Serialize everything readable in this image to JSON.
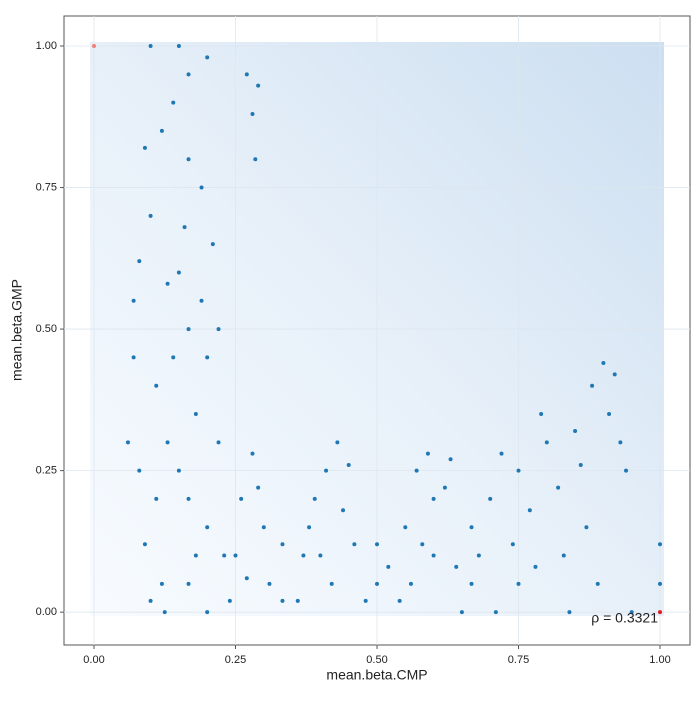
{
  "chart_data": {
    "type": "scatter",
    "x_label": "mean.beta.CMP",
    "y_label": "mean.beta.GMP",
    "annotation": "ρ = 0.3321",
    "xlim": [
      -0.053,
      1.053
    ],
    "ylim": [
      -0.058,
      1.053
    ],
    "xticks": [
      {
        "value": 0,
        "label": "0.00"
      },
      {
        "value": 0.25,
        "label": "0.25"
      },
      {
        "value": 0.5,
        "label": "0.50"
      },
      {
        "value": 0.75,
        "label": "0.75"
      },
      {
        "value": 1,
        "label": "1.00"
      }
    ],
    "yticks": [
      {
        "value": 0,
        "label": "0.00"
      },
      {
        "value": 0.25,
        "label": "0.25"
      },
      {
        "value": 0.5,
        "label": "0.50"
      },
      {
        "value": 0.75,
        "label": "0.75"
      },
      {
        "value": 1,
        "label": "1.00"
      }
    ],
    "grid": true,
    "series": [
      {
        "color": "#1f78b4",
        "x": [
          0.07,
          0.08,
          0.09,
          0.1,
          0.11,
          0.12,
          0.13,
          0.14,
          0.15,
          0.167,
          0.167,
          0.167,
          0.167,
          0.167,
          0.18,
          0.19,
          0.2,
          0.2,
          0.2,
          0.21,
          0.22,
          0.23,
          0.12,
          0.1,
          0.08,
          0.06,
          0.14,
          0.16,
          0.18,
          0.22,
          0.09,
          0.11,
          0.13,
          0.15,
          0.19,
          0.125,
          0.2,
          0.1,
          0.15,
          0.07,
          0.27,
          0.28,
          0.285,
          0.29,
          0.25,
          0.26,
          0.28,
          0.3,
          0.31,
          0.333,
          0.333,
          0.27,
          0.29,
          0.24,
          0.37,
          0.39,
          0.41,
          0.43,
          0.44,
          0.42,
          0.38,
          0.46,
          0.36,
          0.4,
          0.45,
          0.5,
          0.5,
          0.48,
          0.52,
          0.55,
          0.57,
          0.59,
          0.6,
          0.62,
          0.63,
          0.56,
          0.6,
          0.64,
          0.54,
          0.58,
          0.667,
          0.667,
          0.65,
          0.68,
          0.7,
          0.72,
          0.74,
          0.75,
          0.75,
          0.77,
          0.79,
          0.8,
          0.78,
          0.71,
          0.82,
          0.83,
          0.85,
          0.86,
          0.88,
          0.9,
          0.91,
          0.92,
          0.93,
          0.94,
          0.87,
          0.89,
          0.84,
          0.95,
          1,
          1
        ],
        "values": [
          0.55,
          0.25,
          0.12,
          0.7,
          0.4,
          0.05,
          0.3,
          0.9,
          0.6,
          0.95,
          0.8,
          0.5,
          0.2,
          0.05,
          0.35,
          0.75,
          0.45,
          0.15,
          0.98,
          0.65,
          0.3,
          0.1,
          0.85,
          0.02,
          0.62,
          0.3,
          0.45,
          0.68,
          0.1,
          0.5,
          0.82,
          0.2,
          0.58,
          0.25,
          0.55,
          0,
          0,
          1,
          1,
          0.45,
          0.95,
          0.88,
          0.8,
          0.93,
          0.1,
          0.2,
          0.28,
          0.15,
          0.05,
          0.12,
          0.02,
          0.06,
          0.22,
          0.02,
          0.1,
          0.2,
          0.25,
          0.3,
          0.18,
          0.05,
          0.15,
          0.12,
          0.02,
          0.1,
          0.26,
          0.05,
          0.12,
          0.02,
          0.08,
          0.15,
          0.25,
          0.28,
          0.2,
          0.22,
          0.27,
          0.05,
          0.1,
          0.08,
          0.02,
          0.12,
          0.05,
          0.15,
          0,
          0.1,
          0.2,
          0.28,
          0.12,
          0.25,
          0.05,
          0.18,
          0.35,
          0.3,
          0.08,
          0,
          0.22,
          0.1,
          0.32,
          0.26,
          0.4,
          0.44,
          0.35,
          0.42,
          0.3,
          0.25,
          0.15,
          0.05,
          0,
          0,
          0.05,
          0.12
        ]
      },
      {
        "color": "#f08080",
        "x": [
          0
        ],
        "values": [
          1
        ]
      },
      {
        "color": "#e41a1c",
        "x": [
          1
        ],
        "values": [
          0
        ]
      }
    ]
  }
}
